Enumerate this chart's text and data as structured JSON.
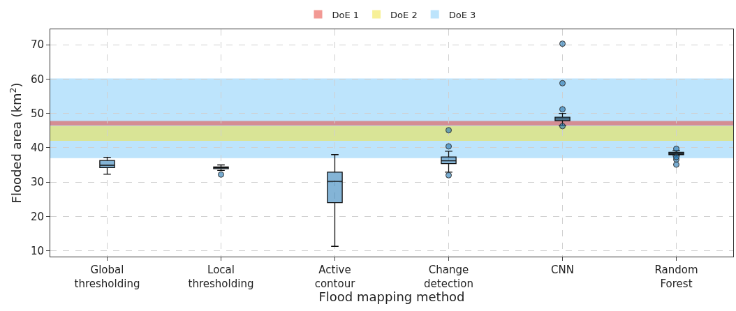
{
  "chart_data": {
    "type": "box",
    "categories": [
      "Global\nthresholding",
      "Local\nthresholding",
      "Active\ncontour",
      "Change\ndetection",
      "CNN",
      "Random\nForest"
    ],
    "xlabel": "Flood mapping method",
    "ylabel": "Flooded area (km$^{2}$)",
    "ylim": [
      8.3,
      74.5
    ],
    "yticks": [
      10,
      20,
      30,
      40,
      50,
      60,
      70
    ],
    "grid": true,
    "legend": "top",
    "series": [
      {
        "color": "#1f77b4",
        "boxes": [
          {
            "low": 32.3,
            "q1": 34.2,
            "median": 34.9,
            "q3": 36.3,
            "high": 37.2
          },
          {
            "low": 33.4,
            "q1": 33.9,
            "median": 34.2,
            "q3": 34.4,
            "high": 35.0,
            "outliers": [
              32.2
            ]
          },
          {
            "low": 11.3,
            "q1": 24.0,
            "median": 30.2,
            "q3": 32.9,
            "high": 38.0
          },
          {
            "low": 32.9,
            "q1": 35.4,
            "median": 36.2,
            "q3": 37.3,
            "high": 39.0,
            "outliers": [
              32.0,
              40.4,
              45.1
            ]
          },
          {
            "low": 46.5,
            "q1": 47.9,
            "median": 48.4,
            "q3": 48.9,
            "high": 50.0,
            "outliers": [
              46.3,
              51.2,
              58.8,
              70.3
            ]
          },
          {
            "low": 37.6,
            "q1": 38.0,
            "median": 38.3,
            "q3": 38.7,
            "high": 39.2,
            "outliers": [
              35.1,
              36.6,
              37.3,
              39.7
            ]
          }
        ]
      }
    ],
    "bands": [
      {
        "axis": "y",
        "from": 37.0,
        "to": 60.2,
        "label": "DoE 3",
        "color": "#87cefa"
      },
      {
        "axis": "y",
        "from": 42.0,
        "to": 46.3,
        "label": "DoE 2",
        "color": "#f0e442"
      },
      {
        "axis": "y",
        "from": 46.5,
        "to": 47.8,
        "label": "DoE 1",
        "color": "#e8453c"
      }
    ]
  }
}
